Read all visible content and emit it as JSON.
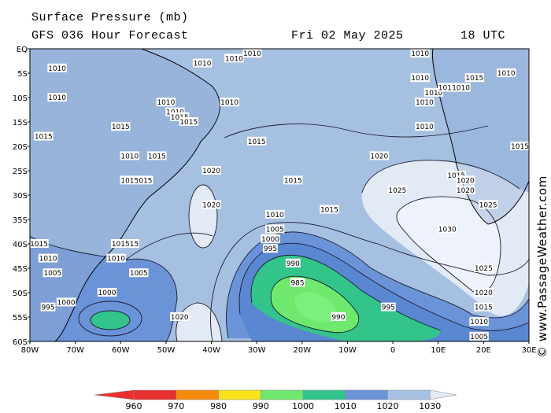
{
  "header": {
    "line1": "Surface Pressure (mb)",
    "line2": "GFS 036 Hour Forecast",
    "date": "Fri 02 May 2025",
    "time": "18 UTC"
  },
  "credit": "© www.PassageWeather.com",
  "map": {
    "lon_range": [
      -80,
      30
    ],
    "lat_range": [
      -60,
      0
    ],
    "lat_ticks": [
      "EQ",
      "5S",
      "10S",
      "15S",
      "20S",
      "25S",
      "30S",
      "35S",
      "40S",
      "45S",
      "50S",
      "55S",
      "60S"
    ],
    "lon_ticks": [
      "80W",
      "70W",
      "60W",
      "50W",
      "40W",
      "30W",
      "20W",
      "10W",
      "0",
      "10E",
      "20E",
      "30E"
    ],
    "pressure_systems": [
      {
        "type": "low",
        "center_lon": -17,
        "center_lat": -50,
        "min_mb": 985
      },
      {
        "type": "high",
        "center_lon": 15,
        "center_lat": -33,
        "max_mb": 1030
      },
      {
        "type": "high",
        "center_lon": -39,
        "center_lat": -55,
        "max_mb": 1020
      },
      {
        "type": "high",
        "center_lon": -41,
        "center_lat": -31,
        "max_mb": 1020
      },
      {
        "type": "low",
        "center_lon": -62,
        "center_lat": -51,
        "min_mb": 1000
      }
    ],
    "isobar_labels": [
      {
        "t": "1015",
        "lon": -30,
        "lat": -19
      },
      {
        "t": "1015",
        "lon": -22,
        "lat": -27
      },
      {
        "t": "1020",
        "lon": -40,
        "lat": -25
      },
      {
        "t": "1020",
        "lon": -40,
        "lat": -32
      },
      {
        "t": "1020",
        "lon": -3,
        "lat": -22
      },
      {
        "t": "1025",
        "lon": 1,
        "lat": -29
      },
      {
        "t": "1030",
        "lon": 12,
        "lat": -37
      },
      {
        "t": "1025",
        "lon": 21,
        "lat": -32
      },
      {
        "t": "1025",
        "lon": 20,
        "lat": -45
      },
      {
        "t": "1020",
        "lon": 20,
        "lat": -50
      },
      {
        "t": "1015",
        "lon": 20,
        "lat": -53
      },
      {
        "t": "1010",
        "lon": 19,
        "lat": -56
      },
      {
        "t": "1005",
        "lon": 19,
        "lat": -59
      },
      {
        "t": "1010",
        "lon": -26,
        "lat": -34
      },
      {
        "t": "1015",
        "lon": -14,
        "lat": -33
      },
      {
        "t": "1005",
        "lon": -26,
        "lat": -37
      },
      {
        "t": "1000",
        "lon": -27,
        "lat": -39
      },
      {
        "t": "995",
        "lon": -27,
        "lat": -41
      },
      {
        "t": "990",
        "lon": -22,
        "lat": -44
      },
      {
        "t": "985",
        "lon": -21,
        "lat": -48
      },
      {
        "t": "990",
        "lon": -12,
        "lat": -55
      },
      {
        "t": "995",
        "lon": -1,
        "lat": -53
      },
      {
        "t": "1020",
        "lon": -47,
        "lat": -55
      },
      {
        "t": "1000",
        "lon": -63,
        "lat": -50
      },
      {
        "t": "1005",
        "lon": -56,
        "lat": -46
      },
      {
        "t": "1010",
        "lon": -61,
        "lat": -43
      },
      {
        "t": "1015",
        "lon": -58,
        "lat": -40
      },
      {
        "t": "1010",
        "lon": -76,
        "lat": -43
      },
      {
        "t": "1005",
        "lon": -75,
        "lat": -46
      },
      {
        "t": "1000",
        "lon": -72,
        "lat": -52
      },
      {
        "t": "995",
        "lon": -76,
        "lat": -53
      },
      {
        "t": "1015",
        "lon": -78,
        "lat": -40
      },
      {
        "t": "1015",
        "lon": -77,
        "lat": -18
      },
      {
        "t": "1010",
        "lon": -58,
        "lat": -22
      },
      {
        "t": "1015",
        "lon": -52,
        "lat": -22
      },
      {
        "t": "1015",
        "lon": -55,
        "lat": -27
      },
      {
        "t": "1015",
        "lon": -58,
        "lat": -27
      },
      {
        "t": "1015",
        "lon": -60,
        "lat": -16
      },
      {
        "t": "1010",
        "lon": -50,
        "lat": -11
      },
      {
        "t": "1010",
        "lon": -48,
        "lat": -13
      },
      {
        "t": "1015",
        "lon": -47,
        "lat": -14
      },
      {
        "t": "1015",
        "lon": -45,
        "lat": -15
      },
      {
        "t": "1010",
        "lon": -42,
        "lat": -3
      },
      {
        "t": "1010",
        "lon": -36,
        "lat": -11
      },
      {
        "t": "1010",
        "lon": -35,
        "lat": -2
      },
      {
        "t": "1010",
        "lon": -31,
        "lat": -1
      },
      {
        "t": "1010",
        "lon": -74,
        "lat": -4
      },
      {
        "t": "1010",
        "lon": -74,
        "lat": -10
      },
      {
        "t": "1010",
        "lon": 6,
        "lat": -1
      },
      {
        "t": "1010",
        "lon": 6,
        "lat": -6
      },
      {
        "t": "1010",
        "lon": 9,
        "lat": -9
      },
      {
        "t": "1010",
        "lon": 12,
        "lat": -8
      },
      {
        "t": "1010",
        "lon": 15,
        "lat": -8
      },
      {
        "t": "1015",
        "lon": 18,
        "lat": -6
      },
      {
        "t": "1010",
        "lon": 25,
        "lat": -5
      },
      {
        "t": "1010",
        "lon": 7,
        "lat": -11
      },
      {
        "t": "1010",
        "lon": 7,
        "lat": -16
      },
      {
        "t": "1015",
        "lon": 28,
        "lat": -20
      },
      {
        "t": "1015",
        "lon": 14,
        "lat": -26
      },
      {
        "t": "1020",
        "lon": 16,
        "lat": -27
      },
      {
        "t": "1020",
        "lon": 16,
        "lat": -29
      },
      {
        "t": "1015",
        "lon": -60,
        "lat": -40
      }
    ]
  },
  "colorbar": {
    "labels": [
      "960",
      "970",
      "980",
      "990",
      "1000",
      "1010",
      "1020",
      "1030"
    ],
    "colors": [
      "#e8302e",
      "#f5890a",
      "#f8e31c",
      "#6ee96e",
      "#33c48c",
      "#6b93d8",
      "#a6c0e2",
      "#e2eaf6"
    ]
  }
}
